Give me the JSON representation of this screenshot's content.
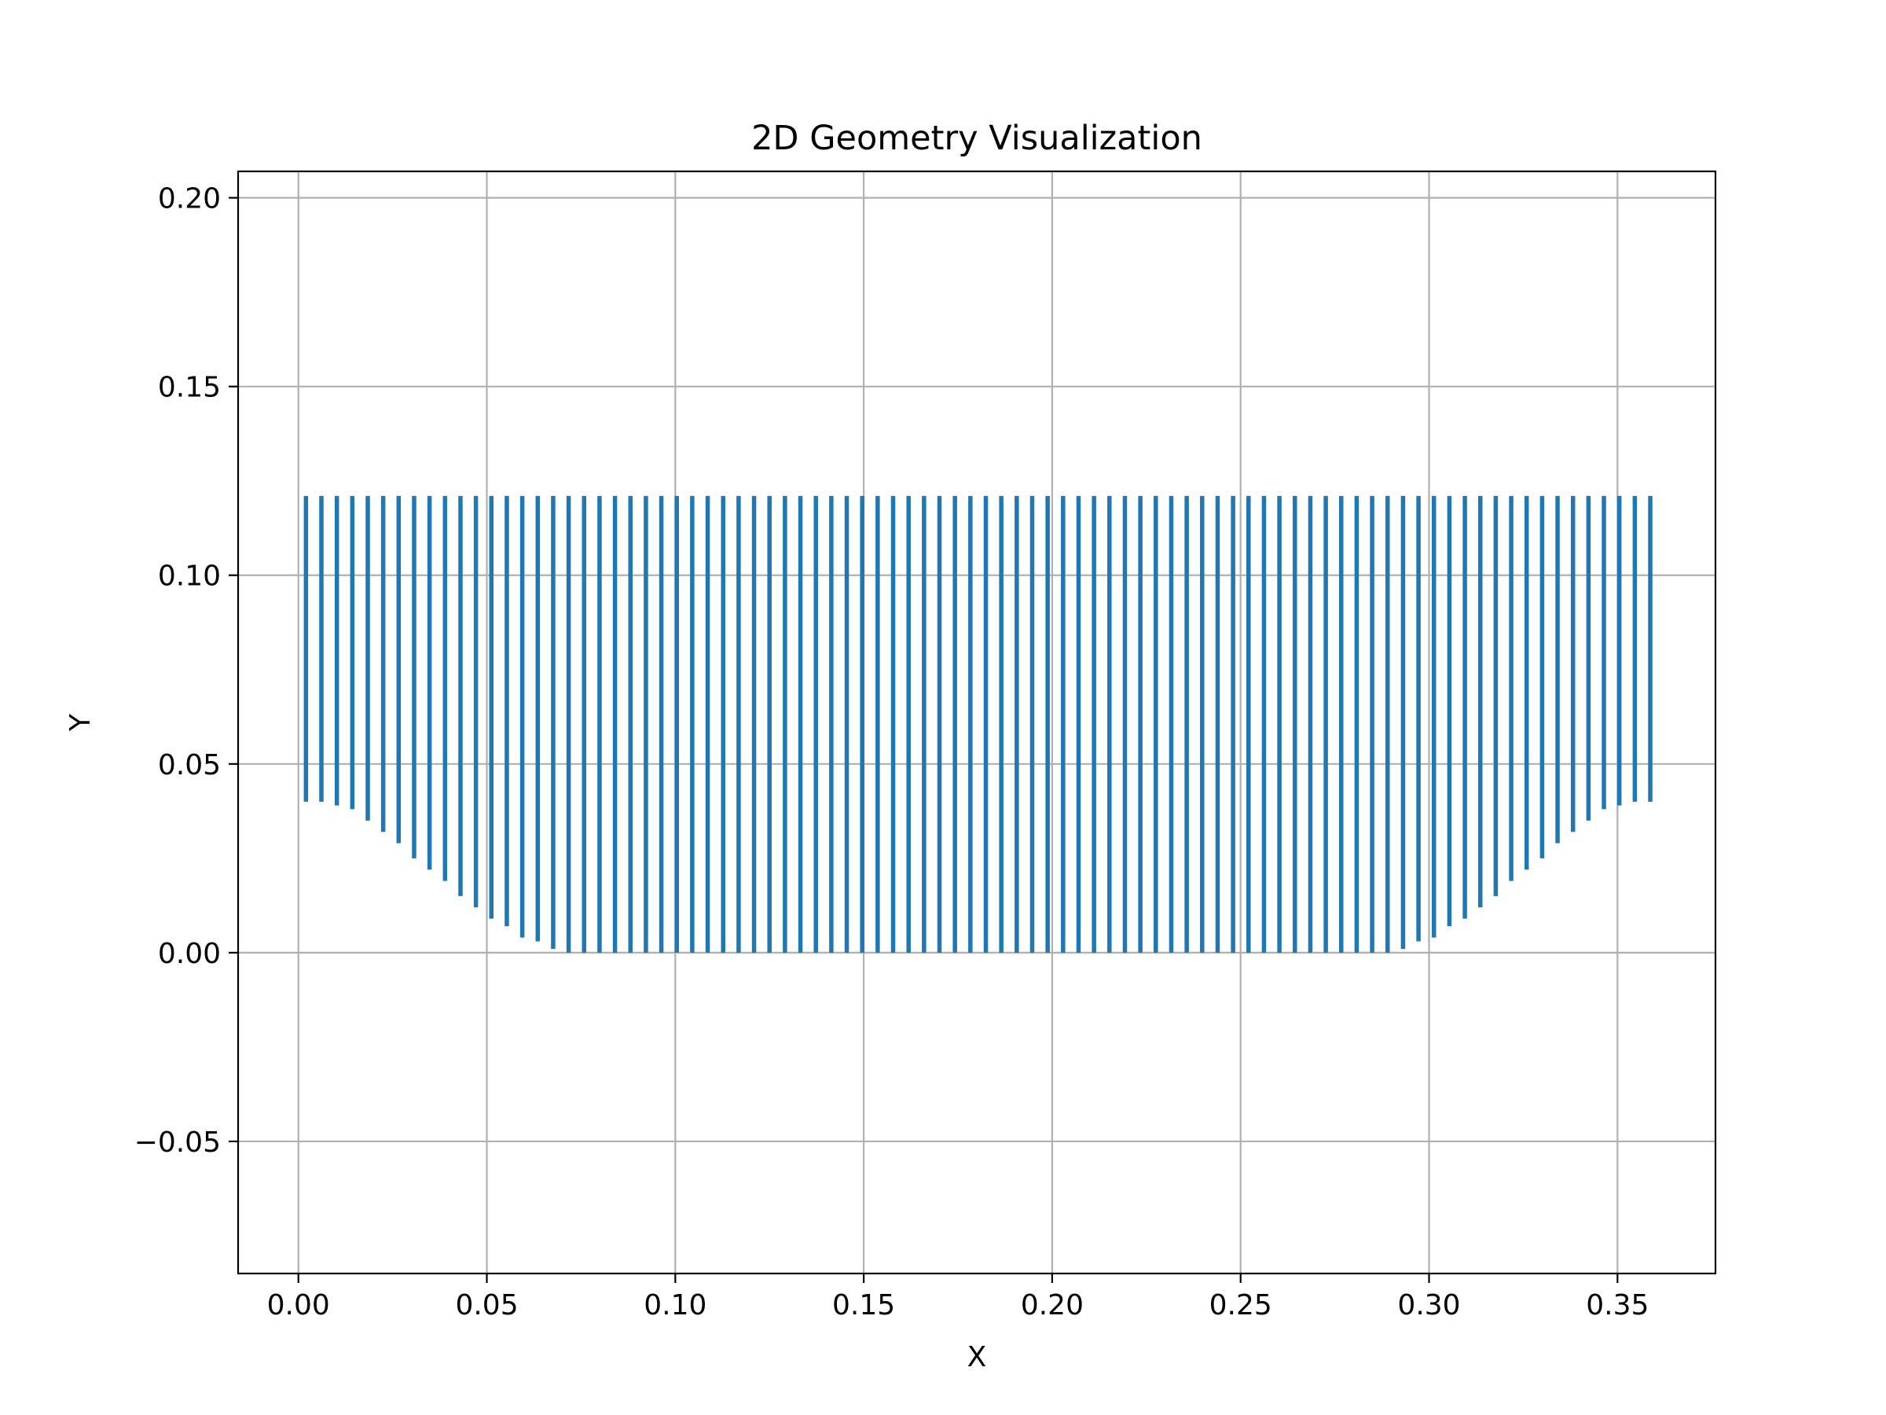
{
  "chart_data": {
    "type": "scatter",
    "title": "2D Geometry Visualization",
    "xlabel": "X",
    "ylabel": "Y",
    "xlim": [
      -0.016,
      0.376
    ],
    "ylim": [
      -0.085,
      0.207
    ],
    "xticks": [
      0.0,
      0.05,
      0.1,
      0.15,
      0.2,
      0.25,
      0.3,
      0.35
    ],
    "xtick_labels": [
      "0.00",
      "0.05",
      "0.10",
      "0.15",
      "0.20",
      "0.25",
      "0.30",
      "0.35"
    ],
    "yticks": [
      -0.05,
      0.0,
      0.05,
      0.1,
      0.15,
      0.2
    ],
    "ytick_labels": [
      "−0.05",
      "0.00",
      "0.05",
      "0.10",
      "0.15",
      "0.20"
    ],
    "grid": true,
    "legend": "none",
    "marker_color": "#1f77b4",
    "series": [
      {
        "columns": {
          "x_start": 0.002,
          "x_step": 0.0041,
          "count": 88,
          "y_top": 0.121,
          "y_bottom": [
            0.04,
            0.04,
            0.039,
            0.038,
            0.035,
            0.032,
            0.029,
            0.025,
            0.022,
            0.019,
            0.015,
            0.012,
            0.009,
            0.007,
            0.004,
            0.003,
            0.001,
            0.0,
            0.0,
            0.0,
            0.0,
            0.0,
            0.0,
            0.0,
            0.0,
            0.0,
            0.0,
            0.0,
            0.0,
            0.0,
            0.0,
            0.0,
            0.0,
            0.0,
            0.0,
            0.0,
            0.0,
            0.0,
            0.0,
            0.0,
            0.0,
            0.0,
            0.0,
            0.0,
            0.0,
            0.0,
            0.0,
            0.0,
            0.0,
            0.0,
            0.0,
            0.0,
            0.0,
            0.0,
            0.0,
            0.0,
            0.0,
            0.0,
            0.0,
            0.0,
            0.0,
            0.0,
            0.0,
            0.0,
            0.0,
            0.0,
            0.0,
            0.0,
            0.0,
            0.0,
            0.0,
            0.001,
            0.003,
            0.004,
            0.007,
            0.009,
            0.012,
            0.015,
            0.019,
            0.022,
            0.025,
            0.029,
            0.032,
            0.035,
            0.038,
            0.039,
            0.04,
            0.04
          ]
        }
      }
    ]
  }
}
